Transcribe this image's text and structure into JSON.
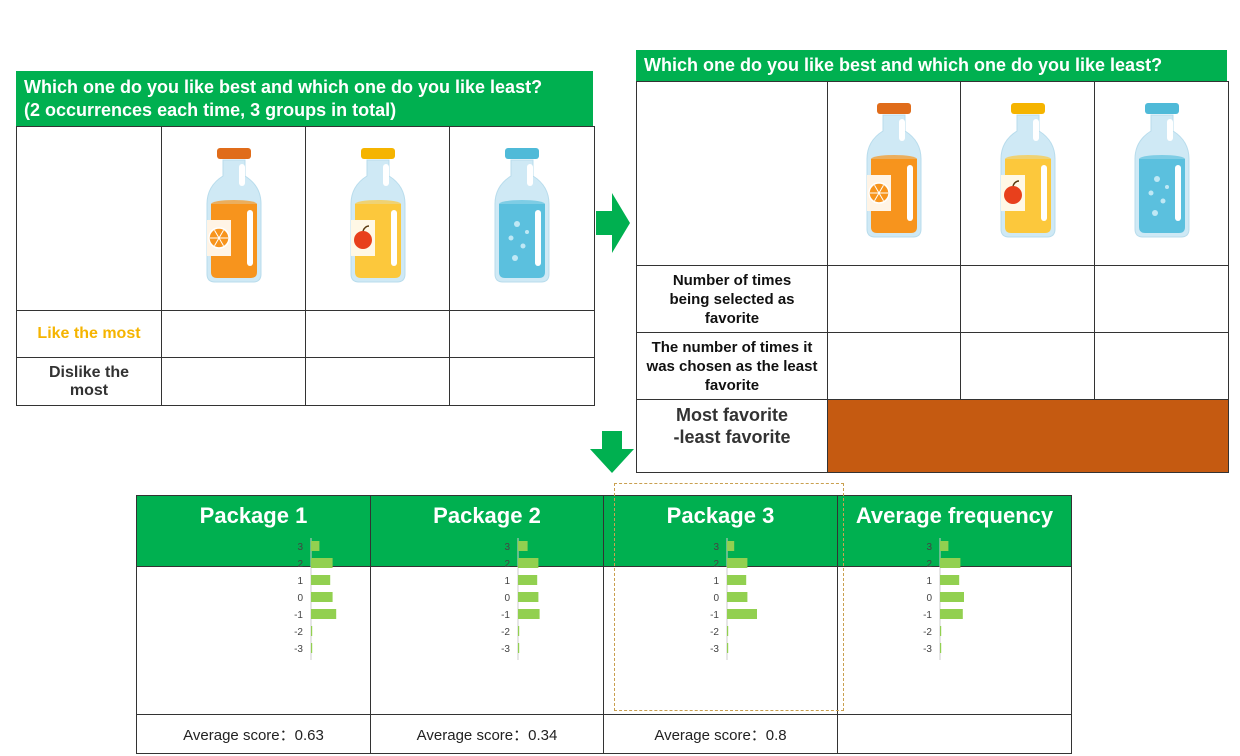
{
  "left_panel": {
    "title_line1": "Which one do you like best and which one do you like least?",
    "title_line2": "(2 occurrences each time, 3 groups in total)",
    "row_like": "Like the most",
    "row_dislike": "Dislike the most"
  },
  "right_panel": {
    "title": "Which one do you like best and which one do you like least?",
    "row_favorite": "Number of times being selected as favorite",
    "row_least": "The number of times it was chosen as the least favorite",
    "row_diff_line1": "Most favorite",
    "row_diff_line2": "-least favorite"
  },
  "bottles": [
    {
      "name": "orange-juice-bottle",
      "cap": "#e06c1a",
      "liquid": "#f7941d",
      "icon": "orange-icon"
    },
    {
      "name": "apple-juice-bottle",
      "cap": "#f5b400",
      "liquid": "#fcc83c",
      "icon": "apple-icon"
    },
    {
      "name": "water-bottle",
      "cap": "#4fbad8",
      "liquid": "#5bc0de",
      "icon": "none"
    }
  ],
  "colors": {
    "header_green": "#00b050",
    "bar_green": "#92d050",
    "diff_orange": "#c55a11"
  },
  "bottom_panel": {
    "columns": [
      {
        "title": "Package 1",
        "avg_label": "Average score：",
        "avg_value": "0.63"
      },
      {
        "title": "Package 2",
        "avg_label": "Average score：",
        "avg_value": "0.34"
      },
      {
        "title": "Package 3",
        "avg_label": "Average score：",
        "avg_value": "0.8"
      },
      {
        "title": "Average frequency",
        "avg_label": "",
        "avg_value": ""
      }
    ]
  },
  "chart_data": [
    {
      "type": "bar",
      "orientation": "horizontal",
      "categories": [
        "3",
        "2",
        "1",
        "0",
        "-1",
        "-2",
        "-3"
      ],
      "values": [
        0.35,
        0.9,
        0.8,
        0.9,
        1.05,
        0.05,
        0.05
      ]
    },
    {
      "type": "bar",
      "orientation": "horizontal",
      "categories": [
        "3",
        "2",
        "1",
        "0",
        "-1",
        "-2",
        "-3"
      ],
      "values": [
        0.4,
        0.85,
        0.8,
        0.85,
        0.9,
        0.05,
        0.05
      ]
    },
    {
      "type": "bar",
      "orientation": "horizontal",
      "categories": [
        "3",
        "2",
        "1",
        "0",
        "-1",
        "-2",
        "-3"
      ],
      "values": [
        0.3,
        0.85,
        0.8,
        0.85,
        1.25,
        0.05,
        0.05
      ]
    },
    {
      "type": "bar",
      "orientation": "horizontal",
      "categories": [
        "3",
        "2",
        "1",
        "0",
        "-1",
        "-2",
        "-3"
      ],
      "values": [
        0.35,
        0.85,
        0.8,
        1.0,
        0.95,
        0.05,
        0.05
      ]
    }
  ]
}
